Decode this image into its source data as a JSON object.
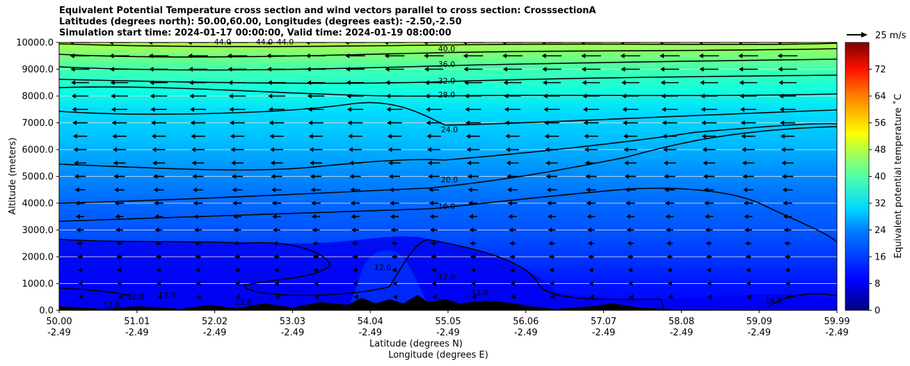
{
  "title_lines": [
    "Equivalent Potential Temperature cross section and wind vectors parallel to cross section: CrosssectionA",
    "Latitudes (degrees north): 50.00,60.00, Longitudes (degrees east): -2.50,-2.50",
    "Simulation start time: 2024-01-17 00:00:00, Valid time: 2024-01-19 08:00:00"
  ],
  "chart_data": {
    "type": "heatmap",
    "ylabel": "Altitude (meters)",
    "xlabel_lat": "Latitude (degrees N)",
    "xlabel_lon": "Longitude (degrees E)",
    "ylim": [
      0,
      10000
    ],
    "y_ticks": [
      "0.0",
      "1000.0",
      "2000.0",
      "3000.0",
      "4000.0",
      "5000.0",
      "6000.0",
      "7000.0",
      "8000.0",
      "9000.0",
      "10000.0"
    ],
    "x_ticks_lat": [
      "50.00",
      "51.01",
      "52.02",
      "53.03",
      "54.04",
      "55.05",
      "56.06",
      "57.07",
      "58.08",
      "59.09",
      "59.99"
    ],
    "x_ticks_lon": [
      "-2.49",
      "-2.49",
      "-2.49",
      "-2.49",
      "-2.49",
      "-2.49",
      "-2.49",
      "-2.49",
      "-2.49",
      "-2.49",
      "-2.49"
    ],
    "grid": "horizontal",
    "colorbar": {
      "label": "Equivalent potential temperature ˚C",
      "min": 0,
      "max": 80,
      "ticks": [
        "0",
        "8",
        "16",
        "24",
        "32",
        "40",
        "48",
        "56",
        "64",
        "72"
      ],
      "colormap": "jet"
    },
    "wind_key": "25 m/s",
    "contour_labels": [
      "44.0",
      "44.0",
      "44.0",
      "40.0",
      "36.0",
      "32.0",
      "28.0",
      "24.0",
      "20.0",
      "16.0",
      "12.0",
      "12.0",
      "12.0",
      "12.0",
      "12.0",
      "12.0",
      "12.0",
      "16.0"
    ],
    "contour_levels": [
      12,
      16,
      20,
      24,
      28,
      32,
      36,
      40,
      44
    ],
    "wind_direction": "westward (leftward), strengthening with altitude"
  }
}
